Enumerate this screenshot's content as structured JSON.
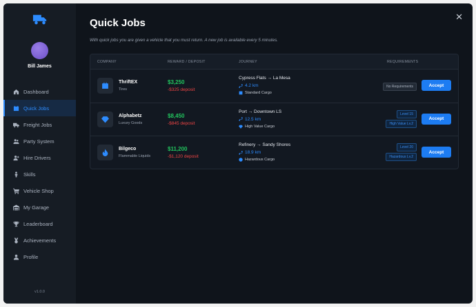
{
  "user": {
    "name": "Bill James"
  },
  "nav": [
    {
      "label": "Dashboard",
      "icon": "dashboard-icon",
      "active": false
    },
    {
      "label": "Quick Jobs",
      "icon": "calendar-icon",
      "active": true
    },
    {
      "label": "Freight Jobs",
      "icon": "truck-icon",
      "active": false
    },
    {
      "label": "Party System",
      "icon": "users-icon",
      "active": false
    },
    {
      "label": "Hire Drivers",
      "icon": "user-plus-icon",
      "active": false
    },
    {
      "label": "Skills",
      "icon": "person-icon",
      "active": false
    },
    {
      "label": "Vehicle Shop",
      "icon": "cart-icon",
      "active": false
    },
    {
      "label": "My Garage",
      "icon": "garage-icon",
      "active": false
    },
    {
      "label": "Leaderboard",
      "icon": "trophy-icon",
      "active": false
    },
    {
      "label": "Achievements",
      "icon": "medal-icon",
      "active": false
    },
    {
      "label": "Profile",
      "icon": "profile-icon",
      "active": false
    }
  ],
  "version": "v1.0.0",
  "page": {
    "title": "Quick Jobs",
    "subtitle": "With quick jobs you are given a vehicle that you must return. A new job is available every 5 minutes.",
    "close_label": "✕"
  },
  "columns": {
    "company": "COMPANY",
    "reward": "REWARD / DEPOSIT",
    "journey": "JOURNEY",
    "requirements": "REQUIREMENTS"
  },
  "jobs": [
    {
      "company": "ThriftEX",
      "type": "Tires",
      "icon": "box-icon",
      "reward": "$3,250",
      "deposit": "-$325 deposit",
      "route": "Cypress Flats → La Mesa",
      "distance": "4.2 km",
      "cargo": "Standard Cargo",
      "cargo_icon": "box-icon",
      "requirements": [
        "No Requirements"
      ],
      "action": "Accept"
    },
    {
      "company": "Alphabetz",
      "type": "Luxury Goods",
      "icon": "diamond-icon",
      "reward": "$8,450",
      "deposit": "-$845 deposit",
      "route": "Port → Downtown LS",
      "distance": "12.5 km",
      "cargo": "High Value Cargo",
      "cargo_icon": "diamond-icon",
      "requirements": [
        "Level 15",
        "High Value Lv.2"
      ],
      "action": "Accept"
    },
    {
      "company": "Bilgeco",
      "type": "Flammable Liquids",
      "icon": "flame-icon",
      "reward": "$11,200",
      "deposit": "-$1,120 deposit",
      "route": "Refinery → Sandy Shores",
      "distance": "18.9 km",
      "cargo": "Hazardous Cargo",
      "cargo_icon": "hazard-icon",
      "requirements": [
        "Level 20",
        "Hazardous Lv.2"
      ],
      "action": "Accept"
    }
  ],
  "colors": {
    "accent": "#1d7cf2",
    "reward": "#22c55e",
    "deposit": "#ef4444",
    "background": "#0f141b",
    "sidebar": "#161c24"
  }
}
